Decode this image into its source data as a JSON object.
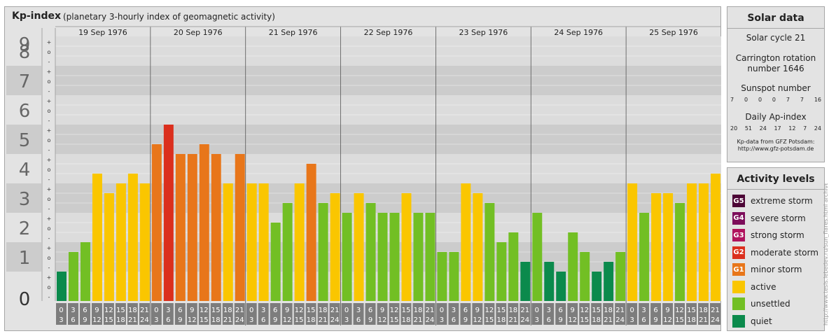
{
  "header": {
    "title": "Kp-index",
    "subtitle": "(planetary 3-hourly index of geomagnetic activity)"
  },
  "colors": {
    "quiet": "#0b8a4c",
    "unsettled": "#72bf24",
    "active": "#fac600",
    "minor": "#e8761a",
    "moderate": "#db2f1d",
    "strong": "#b0125d",
    "severe": "#7d0d5b",
    "extreme": "#4d0536"
  },
  "chart_data": {
    "type": "bar",
    "ylim": [
      0,
      9
    ],
    "y_ticks": [
      "0",
      "1",
      "2",
      "3",
      "4",
      "5",
      "6",
      "7",
      "8",
      "9"
    ],
    "sub_ticks": [
      "-",
      "o",
      "+"
    ],
    "days": [
      "19 Sep 1976",
      "20 Sep 1976",
      "21 Sep 1976",
      "22 Sep 1976",
      "23 Sep 1976",
      "24 Sep 1976",
      "25 Sep 1976"
    ],
    "interval_labels": [
      [
        "0",
        "3"
      ],
      [
        "3",
        "6"
      ],
      [
        "6",
        "9"
      ],
      [
        "9",
        "12"
      ],
      [
        "12",
        "15"
      ],
      [
        "15",
        "18"
      ],
      [
        "18",
        "21"
      ],
      [
        "21",
        "24"
      ]
    ],
    "series": [
      {
        "values": [
          1.0,
          1.667,
          2.0,
          4.333,
          3.667,
          4.0,
          4.333,
          4.0,
          5.333,
          6.0,
          5.0,
          5.0,
          5.333,
          5.0,
          4.0,
          5.0,
          4.0,
          4.0,
          2.667,
          3.333,
          4.0,
          4.667,
          3.333,
          3.667,
          3.0,
          3.667,
          3.333,
          3.0,
          3.0,
          3.667,
          3.0,
          3.0,
          1.667,
          1.667,
          4.0,
          3.667,
          3.333,
          2.0,
          2.333,
          1.333,
          3.0,
          1.333,
          1.0,
          2.333,
          1.667,
          1.0,
          1.333,
          1.667,
          4.0,
          3.0,
          3.667,
          3.667,
          3.333,
          4.0,
          4.0,
          4.333
        ]
      }
    ]
  },
  "solar": {
    "title": "Solar data",
    "cycle": "Solar cycle 21",
    "carrington_line1": "Carrington rotation",
    "carrington_line2": "number 1646",
    "sunspot_label": "Sunspot number",
    "sunspots": [
      "7",
      "0",
      "0",
      "0",
      "7",
      "7",
      "16"
    ],
    "ap_label": "Daily Ap-index",
    "ap": [
      "20",
      "51",
      "24",
      "17",
      "12",
      "7",
      "24"
    ],
    "credit_line1": "Kp-data from GFZ Potsdam:",
    "credit_line2": "http://www.gfz-potsdam.de"
  },
  "levels": {
    "title": "Activity levels",
    "items": [
      {
        "code": "G5",
        "label": "extreme storm",
        "color": "#4d0536"
      },
      {
        "code": "G4",
        "label": "severe storm",
        "color": "#7d0d5b"
      },
      {
        "code": "G3",
        "label": "strong storm",
        "color": "#b0125d"
      },
      {
        "code": "G2",
        "label": "moderate storm",
        "color": "#db2f1d"
      },
      {
        "code": "G1",
        "label": "minor storm",
        "color": "#e8761a"
      },
      {
        "code": "",
        "label": "active",
        "color": "#fac600"
      },
      {
        "code": "",
        "label": "unsettled",
        "color": "#72bf24"
      },
      {
        "code": "",
        "label": "quiet",
        "color": "#0b8a4c"
      }
    ]
  },
  "watermark": "http://www.tesis.lebedev.ru/sun_flares.html archive.html"
}
